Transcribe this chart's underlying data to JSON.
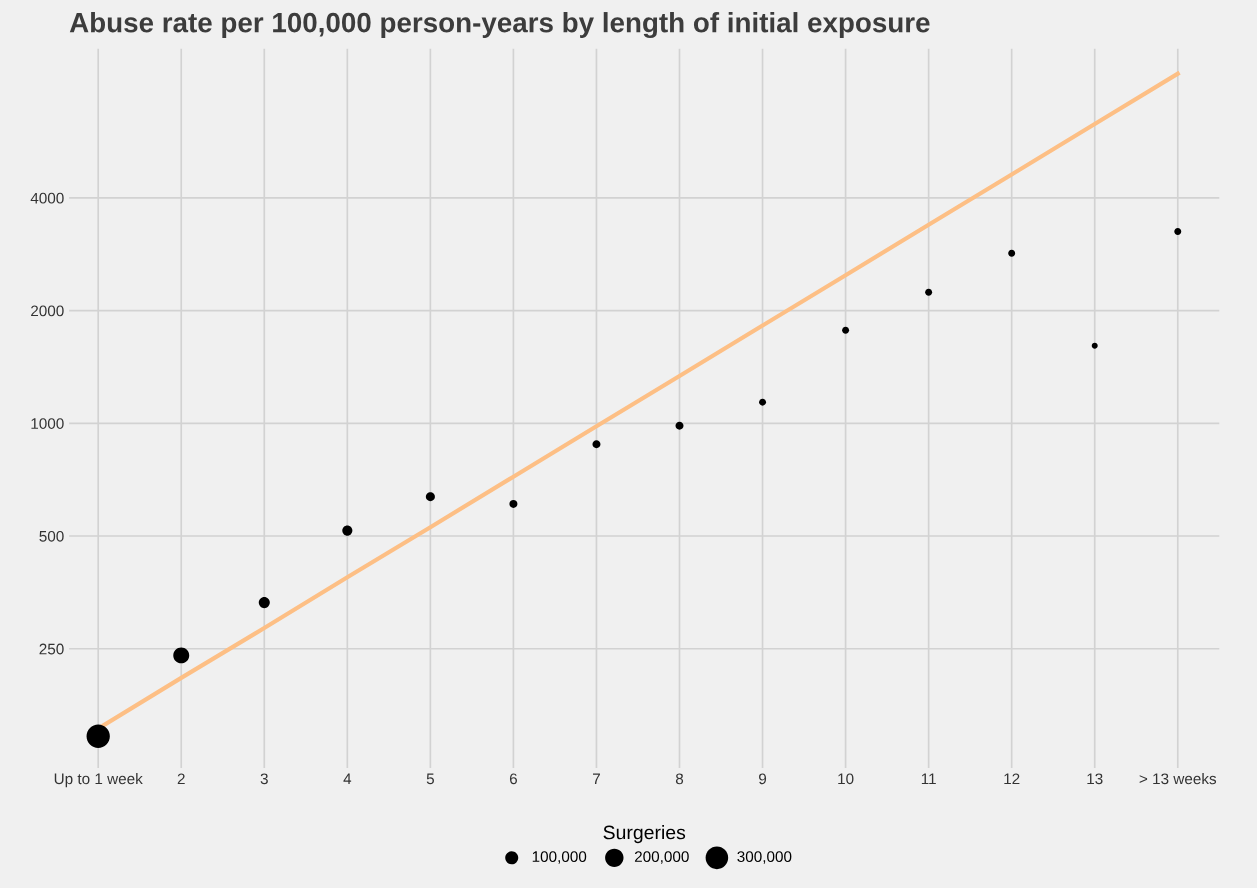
{
  "chart_data": {
    "type": "bubble",
    "title": "Abuse rate per 100,000 person-years by length of initial exposure",
    "categories": [
      "Up to 1 week",
      "2",
      "3",
      "4",
      "5",
      "6",
      "7",
      "8",
      "9",
      "10",
      "11",
      "12",
      "13",
      "> 13 weeks"
    ],
    "series": [
      {
        "type": "bubble",
        "color": "#000000",
        "values": [
          146,
          240,
          332,
          517,
          637,
          609,
          879,
          985,
          1139,
          1773,
          2239,
          2847,
          1612,
          3252
        ],
        "sizes": [
          320000,
          150000,
          72000,
          60000,
          48000,
          38000,
          38000,
          38000,
          29000,
          29000,
          29000,
          29000,
          21000,
          29000
        ]
      },
      {
        "type": "line",
        "color": "#fdbf85",
        "marker": "none",
        "values": [
          153,
          209,
          284,
          388,
          528,
          720,
          982,
          1338,
          1824,
          2486,
          3389,
          4619,
          6296,
          8582
        ]
      }
    ],
    "log": "y",
    "ylim": [
      120,
      10000
    ],
    "yticks": [
      250,
      500,
      1000,
      2000,
      4000
    ],
    "grid": true,
    "legend_title": "Surgeries",
    "size_legend": [
      {
        "value": 100000,
        "label": "100,000"
      },
      {
        "value": 200000,
        "label": "200,000"
      },
      {
        "value": 300000,
        "label": "300,000"
      }
    ],
    "marker": "circle"
  }
}
